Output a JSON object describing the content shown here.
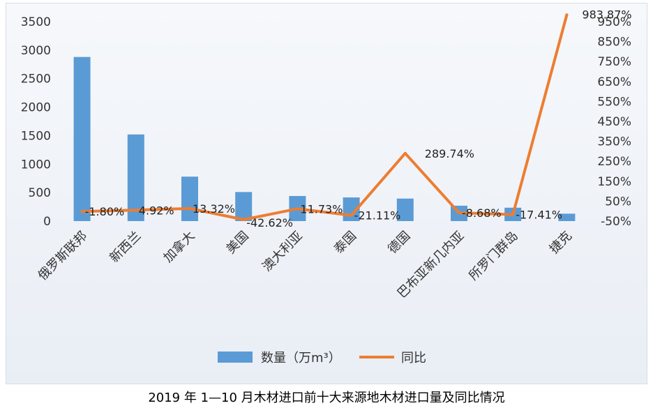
{
  "caption": "2019 年 1—10 月木材进口前十大来源地木材进口量及同比情况",
  "chart_data": {
    "type": "bar+line",
    "categories": [
      "俄罗斯联邦",
      "新西兰",
      "加拿大",
      "美国",
      "澳大利亚",
      "泰国",
      "德国",
      "巴布亚新几内亚",
      "所罗门群岛",
      "捷克"
    ],
    "series": [
      {
        "name": "数量（万m³）",
        "type": "bar",
        "axis": "left",
        "color": "#5b9bd5",
        "values": [
          2880,
          1520,
          780,
          510,
          440,
          415,
          395,
          270,
          235,
          130
        ]
      },
      {
        "name": "同比",
        "type": "line",
        "axis": "right",
        "color": "#ed7d31",
        "values": [
          -1.8,
          4.92,
          13.32,
          -42.62,
          11.73,
          -21.11,
          289.74,
          -8.68,
          -17.41,
          983.87
        ],
        "labels": [
          "-1.80%",
          "4.92%",
          "13.32%",
          "-42.62%",
          "11.73%",
          "-21.11%",
          "289.74%",
          "-8.68%",
          "-17.41%",
          "983.87%"
        ]
      }
    ],
    "y_left": {
      "ylim": [
        0,
        3500
      ],
      "ticks": [
        0,
        500,
        1000,
        1500,
        2000,
        2500,
        3000,
        3500
      ],
      "tick_labels": [
        "0",
        "500",
        "1000",
        "1500",
        "2000",
        "2500",
        "3000",
        "3500"
      ]
    },
    "y_right": {
      "ylim": [
        -50,
        950
      ],
      "ticks": [
        -50,
        50,
        150,
        250,
        350,
        450,
        550,
        650,
        750,
        850,
        950
      ],
      "tick_labels": [
        "-50%",
        "50%",
        "150%",
        "250%",
        "350%",
        "450%",
        "550%",
        "650%",
        "750%",
        "850%",
        "950%"
      ]
    },
    "grid": false,
    "legend_position": "bottom"
  }
}
